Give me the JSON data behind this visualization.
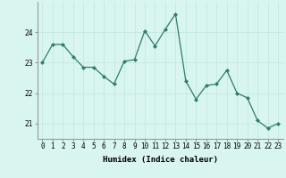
{
  "xlabel": "Humidex (Indice chaleur)",
  "ylabel": "",
  "x": [
    0,
    1,
    2,
    3,
    4,
    5,
    6,
    7,
    8,
    9,
    10,
    11,
    12,
    13,
    14,
    15,
    16,
    17,
    18,
    19,
    20,
    21,
    22,
    23
  ],
  "y": [
    23.0,
    23.6,
    23.6,
    23.2,
    22.85,
    22.85,
    22.55,
    22.3,
    23.05,
    23.1,
    24.05,
    23.55,
    24.1,
    24.6,
    22.4,
    21.8,
    22.25,
    22.3,
    22.75,
    22.0,
    21.85,
    21.1,
    20.85,
    21.0
  ],
  "line_color": "#2e7d6e",
  "marker": "D",
  "marker_size": 2.0,
  "background_color": "#d8f5f0",
  "grid_color": "#c0e8e0",
  "ylim": [
    20.5,
    25.0
  ],
  "yticks": [
    21,
    22,
    23,
    24
  ],
  "xlabel_fontsize": 6.5,
  "tick_fontsize": 5.5,
  "linewidth": 0.9
}
